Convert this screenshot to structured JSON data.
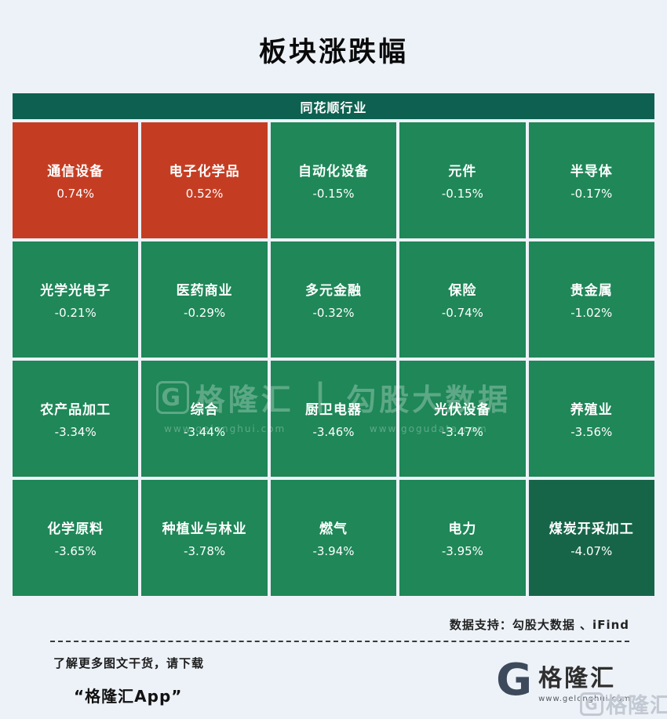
{
  "page": {
    "title": "板块涨跌幅",
    "background_color": "#edf2f8"
  },
  "chart_data": {
    "type": "heatmap",
    "title": "板块涨跌幅",
    "group_label": "同花顺行业",
    "grid": [
      5,
      4
    ],
    "value_unit": "%",
    "color_scale": {
      "positive": "#c43d23",
      "negative": "#1f8758",
      "most_negative": "#176549",
      "header": "#0e6150"
    },
    "sectors": [
      {
        "name": "通信设备",
        "change_pct": 0.74
      },
      {
        "name": "电子化学品",
        "change_pct": 0.52
      },
      {
        "name": "自动化设备",
        "change_pct": -0.15
      },
      {
        "name": "元件",
        "change_pct": -0.15
      },
      {
        "name": "半导体",
        "change_pct": -0.17
      },
      {
        "name": "光学光电子",
        "change_pct": -0.21
      },
      {
        "name": "医药商业",
        "change_pct": -0.29
      },
      {
        "name": "多元金融",
        "change_pct": -0.32
      },
      {
        "name": "保险",
        "change_pct": -0.74
      },
      {
        "name": "贵金属",
        "change_pct": -1.02
      },
      {
        "name": "农产品加工",
        "change_pct": -3.34
      },
      {
        "name": "综合",
        "change_pct": -3.44
      },
      {
        "name": "厨卫电器",
        "change_pct": -3.46
      },
      {
        "name": "光伏设备",
        "change_pct": -3.47
      },
      {
        "name": "养殖业",
        "change_pct": -3.56
      },
      {
        "name": "化学原料",
        "change_pct": -3.65
      },
      {
        "name": "种植业与林业",
        "change_pct": -3.78
      },
      {
        "name": "燃气",
        "change_pct": -3.94
      },
      {
        "name": "电力",
        "change_pct": -3.95
      },
      {
        "name": "煤炭开采加工",
        "change_pct": -4.07
      }
    ]
  },
  "heatmap": {
    "header": "同花顺行业"
  },
  "watermark": {
    "left_icon": "G",
    "left_text": "格隆汇",
    "left_url": "www.gelonghui.com",
    "divider": "|",
    "right_text": "勾股大数据",
    "right_url": "www.gogudata.com"
  },
  "footer": {
    "data_support": "数据支持：勾股大数据 、iFind",
    "promo_line1": "了解更多图文干货，请下载",
    "promo_line2": "“格隆汇App”",
    "brand": {
      "icon": "G",
      "name": "格隆汇",
      "url": "www.gelonghui.com"
    },
    "corner_mark": {
      "icon": "G",
      "text": "格隆汇"
    }
  }
}
